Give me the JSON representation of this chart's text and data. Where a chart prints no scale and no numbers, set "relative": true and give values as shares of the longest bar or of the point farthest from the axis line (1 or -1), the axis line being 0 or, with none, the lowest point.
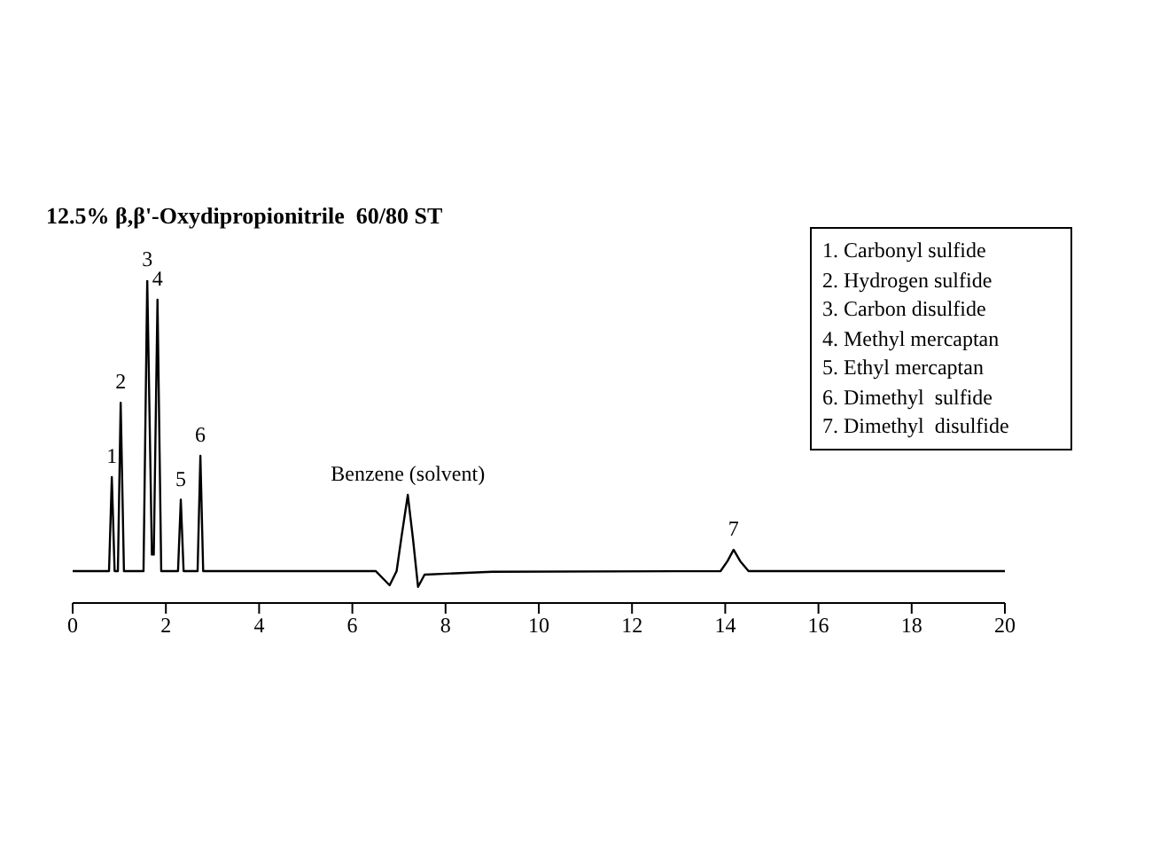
{
  "chart_data": {
    "type": "line",
    "title": "12.5% β,β'-Oxydipropionitrile  60/80 ST",
    "relative": true,
    "xlim": [
      0,
      20
    ],
    "xticks": [
      0,
      2,
      4,
      6,
      8,
      10,
      12,
      14,
      16,
      18,
      20
    ],
    "grid": false,
    "legend": false,
    "marker": "none",
    "line_style": "solid",
    "x": [
      0,
      0.78,
      0.84,
      0.9,
      0.97,
      1.03,
      1.1,
      1.52,
      1.6,
      1.7,
      1.74,
      1.82,
      1.9,
      2.26,
      2.32,
      2.38,
      2.68,
      2.74,
      2.8,
      6.5,
      6.8,
      6.95,
      7.05,
      7.19,
      7.3,
      7.41,
      7.55,
      9,
      13.9,
      14.05,
      14.18,
      14.32,
      14.5,
      20
    ],
    "series": [
      {
        "color": "#000000",
        "values": [
          0.099,
          0.099,
          0.39,
          0.099,
          0.099,
          0.62,
          0.099,
          0.099,
          1.0,
          0.15,
          0.15,
          0.94,
          0.099,
          0.099,
          0.32,
          0.099,
          0.099,
          0.456,
          0.099,
          0.099,
          0.055,
          0.099,
          0.2,
          0.335,
          0.2,
          0.05,
          0.088,
          0.097,
          0.099,
          0.13,
          0.165,
          0.13,
          0.099,
          0.099
        ]
      }
    ],
    "annotations": [
      {
        "text": "1",
        "x": 0.84,
        "y": 0.39
      },
      {
        "text": "2",
        "x": 1.03,
        "y": 0.62
      },
      {
        "text": "3",
        "x": 1.6,
        "y": 1.0
      },
      {
        "text": "4",
        "x": 1.82,
        "y": 0.94
      },
      {
        "text": "5",
        "x": 2.32,
        "y": 0.32
      },
      {
        "text": "6",
        "x": 2.74,
        "y": 0.456
      },
      {
        "text": "Benzene (solvent)",
        "x": 7.19,
        "y": 0.335
      },
      {
        "text": "7",
        "x": 14.18,
        "y": 0.165
      },
      "1. Carbonyl sulfide",
      "2. Hydrogen sulfide",
      "3. Carbon disulfide",
      "4. Methyl mercaptan",
      "5. Ethyl mercaptan",
      "6. Dimethyl  sulfide",
      "7. Dimethyl  disulfide"
    ]
  }
}
